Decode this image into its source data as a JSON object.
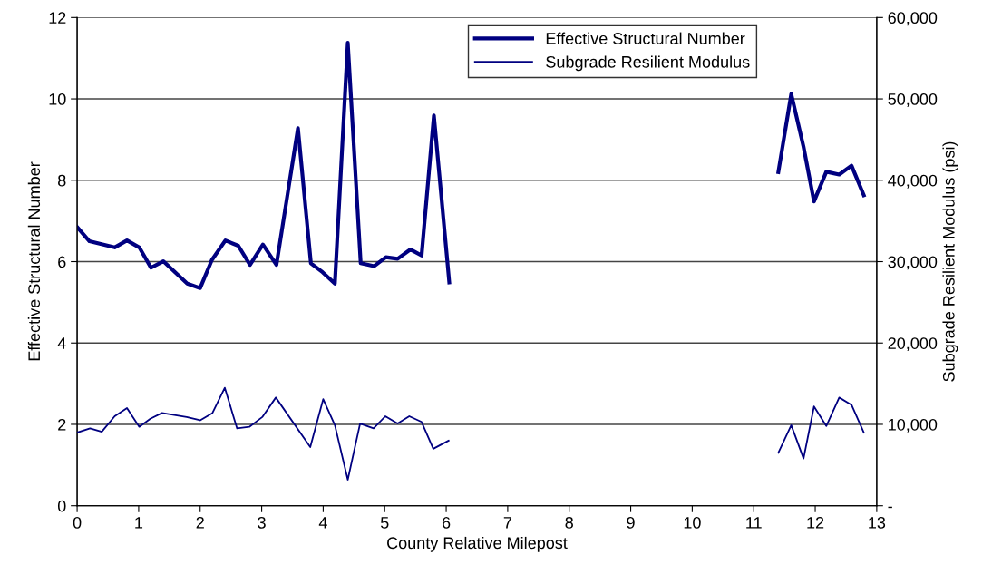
{
  "chart_data": {
    "type": "line",
    "xlabel": "County Relative Milepost",
    "ylabel": "Effective Structural Number",
    "y2label": "Subgrade Resilient Modulus (psi)",
    "xlim": [
      0,
      13
    ],
    "xticks": [
      0,
      1,
      2,
      3,
      4,
      5,
      6,
      7,
      8,
      9,
      10,
      11,
      12,
      13
    ],
    "ylim": [
      0,
      12
    ],
    "yticks": [
      0,
      2,
      4,
      6,
      8,
      10,
      12
    ],
    "y2lim": [
      0,
      60000
    ],
    "y2ticks": [
      {
        "value": 0,
        "label": "-"
      },
      {
        "value": 10000,
        "label": "10,000"
      },
      {
        "value": 20000,
        "label": "20,000"
      },
      {
        "value": 30000,
        "label": "30,000"
      },
      {
        "value": 40000,
        "label": "40,000"
      },
      {
        "value": 50000,
        "label": "50,000"
      },
      {
        "value": 60000,
        "label": "60,000"
      }
    ],
    "grid": "y",
    "legend": "top right",
    "marker": "none",
    "line_style": "solid",
    "series": [
      {
        "name": "Effective Structural Number",
        "color": "#000080",
        "axis": "y",
        "x": [
          0,
          0.2,
          0.61,
          0.81,
          1.01,
          1.2,
          1.4,
          1.79,
          2.0,
          2.19,
          2.41,
          2.62,
          2.81,
          3.02,
          3.24,
          3.59,
          3.8,
          3.99,
          4.19,
          4.4,
          4.61,
          4.83,
          5.02,
          5.21,
          5.42,
          5.6,
          5.8,
          6.05,
          null,
          11.4,
          11.61,
          11.81,
          11.98,
          12.18,
          12.39,
          12.59,
          12.79
        ],
        "values": [
          6.85,
          6.5,
          6.35,
          6.52,
          6.35,
          5.85,
          6.01,
          5.46,
          5.35,
          6.04,
          6.52,
          6.39,
          5.92,
          6.42,
          5.92,
          9.28,
          5.96,
          5.74,
          5.46,
          11.38,
          5.96,
          5.89,
          6.11,
          6.07,
          6.3,
          6.15,
          9.59,
          5.49,
          null,
          8.2,
          10.12,
          8.82,
          7.48,
          8.21,
          8.14,
          8.36,
          7.63
        ]
      },
      {
        "name": "Subgrade Resilient Modulus",
        "color": "#000080",
        "axis": "y2",
        "x": [
          0,
          0.21,
          0.4,
          0.61,
          0.81,
          1.01,
          1.19,
          1.38,
          1.78,
          2.0,
          2.2,
          2.4,
          2.6,
          2.8,
          3.01,
          3.23,
          3.79,
          4.0,
          4.19,
          4.4,
          4.6,
          4.82,
          5.01,
          5.21,
          5.4,
          5.6,
          5.79,
          6.04,
          null,
          11.4,
          11.61,
          11.81,
          11.98,
          12.18,
          12.39,
          12.59,
          12.79
        ],
        "values": [
          9000,
          9500,
          9100,
          11000,
          12000,
          9700,
          10700,
          11400,
          10900,
          10500,
          11400,
          14500,
          9500,
          9700,
          10900,
          13300,
          7200,
          13100,
          9900,
          3200,
          10100,
          9500,
          11000,
          10100,
          11000,
          10300,
          7000,
          8000,
          null,
          6500,
          9900,
          5800,
          12200,
          9800,
          13300,
          12400,
          9000
        ]
      }
    ]
  }
}
